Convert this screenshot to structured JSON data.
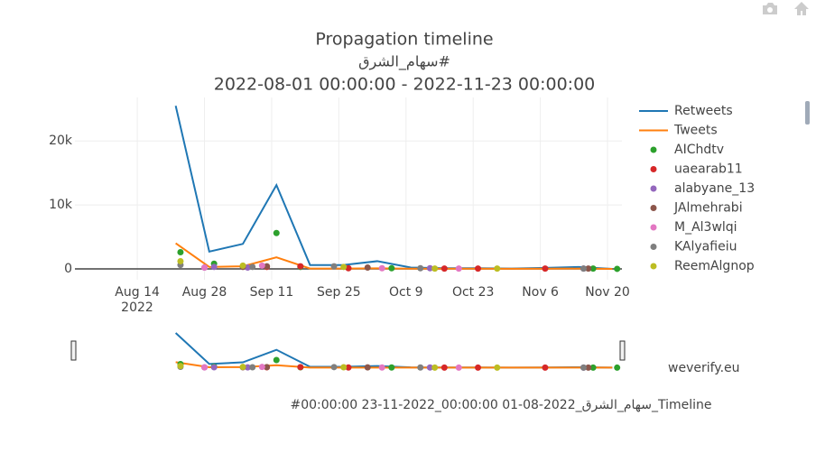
{
  "chart_data": {
    "type": "line",
    "title": "Propagation timeline",
    "subtitle": "#سهام_الشرق",
    "date_range": "2022-08-01 00:00:00 - 2022-11-23 00:00:00",
    "x_year_label": "2022",
    "watermark": "weverify.eu",
    "caption": "#00:00:00 23-11-2022_00:00:00 01-08-2022_سهام_الشرق_Timeline",
    "xlim": [
      "2022-08-01",
      "2022-11-23"
    ],
    "xticks": [
      {
        "value": "2022-08-14",
        "label": "Aug 14"
      },
      {
        "value": "2022-08-28",
        "label": "Aug 28"
      },
      {
        "value": "2022-09-11",
        "label": "Sep 11"
      },
      {
        "value": "2022-09-25",
        "label": "Sep 25"
      },
      {
        "value": "2022-10-09",
        "label": "Oct 9"
      },
      {
        "value": "2022-10-23",
        "label": "Oct 23"
      },
      {
        "value": "2022-11-06",
        "label": "Nov 6"
      },
      {
        "value": "2022-11-20",
        "label": "Nov 20"
      }
    ],
    "ylim": [
      -1700,
      26800
    ],
    "yticks": [
      0,
      {
        "value": 10000,
        "label": "10k"
      },
      {
        "value": 20000,
        "label": "20k"
      }
    ],
    "grid": true,
    "legend": "right",
    "series": [
      {
        "name": "Retweets",
        "color": "#1f77b4",
        "mode": "lines",
        "x": [
          "2022-08-22",
          "2022-08-29",
          "2022-09-05",
          "2022-09-12",
          "2022-09-19",
          "2022-09-26",
          "2022-10-03",
          "2022-10-10",
          "2022-10-17",
          "2022-10-24",
          "2022-10-31",
          "2022-11-07",
          "2022-11-14",
          "2022-11-21"
        ],
        "values": [
          25500,
          2700,
          3900,
          13100,
          600,
          600,
          1200,
          200,
          100,
          100,
          50,
          150,
          300,
          0
        ]
      },
      {
        "name": "Tweets",
        "color": "#ff7f0e",
        "mode": "lines",
        "x": [
          "2022-08-22",
          "2022-08-29",
          "2022-09-05",
          "2022-09-12",
          "2022-09-19",
          "2022-09-26",
          "2022-10-03",
          "2022-10-10",
          "2022-10-17",
          "2022-10-24",
          "2022-10-31",
          "2022-11-07",
          "2022-11-14",
          "2022-11-21"
        ],
        "values": [
          4000,
          300,
          400,
          1800,
          50,
          50,
          80,
          30,
          20,
          20,
          10,
          20,
          40,
          0
        ]
      },
      {
        "name": "AIChdtv",
        "color": "#2ca02c",
        "mode": "markers",
        "x": [
          "2022-08-23",
          "2022-08-30",
          "2022-09-12",
          "2022-09-17",
          "2022-10-06",
          "2022-11-17",
          "2022-11-22"
        ],
        "values": [
          2600,
          800,
          5600,
          300,
          100,
          50,
          0
        ]
      },
      {
        "name": "uaearab11",
        "color": "#d62728",
        "mode": "markers",
        "x": [
          "2022-09-10",
          "2022-09-17",
          "2022-09-27",
          "2022-10-17",
          "2022-10-24",
          "2022-11-07"
        ],
        "values": [
          300,
          400,
          100,
          50,
          50,
          50
        ]
      },
      {
        "name": "alabyane_13",
        "color": "#9467bd",
        "mode": "markers",
        "x": [
          "2022-08-28",
          "2022-08-30",
          "2022-09-06",
          "2022-10-14",
          "2022-11-15"
        ],
        "values": [
          200,
          300,
          200,
          100,
          50
        ]
      },
      {
        "name": "JAlmehrabi",
        "color": "#8c564b",
        "mode": "markers",
        "x": [
          "2022-09-05",
          "2022-09-10",
          "2022-10-01",
          "2022-11-16"
        ],
        "values": [
          300,
          400,
          200,
          50
        ]
      },
      {
        "name": "M_Al3wlqi",
        "color": "#e377c2",
        "mode": "markers",
        "x": [
          "2022-08-28",
          "2022-09-09",
          "2022-10-04",
          "2022-10-20"
        ],
        "values": [
          200,
          500,
          100,
          50
        ]
      },
      {
        "name": "KAlyafieiu",
        "color": "#7f7f7f",
        "mode": "markers",
        "x": [
          "2022-08-23",
          "2022-09-07",
          "2022-09-24",
          "2022-10-12",
          "2022-11-15"
        ],
        "values": [
          600,
          300,
          400,
          100,
          50
        ]
      },
      {
        "name": "ReemAlgnop",
        "color": "#bcbd22",
        "mode": "markers",
        "x": [
          "2022-08-23",
          "2022-09-05",
          "2022-09-26",
          "2022-10-15",
          "2022-10-28"
        ],
        "values": [
          1200,
          500,
          300,
          50,
          50
        ]
      }
    ]
  }
}
